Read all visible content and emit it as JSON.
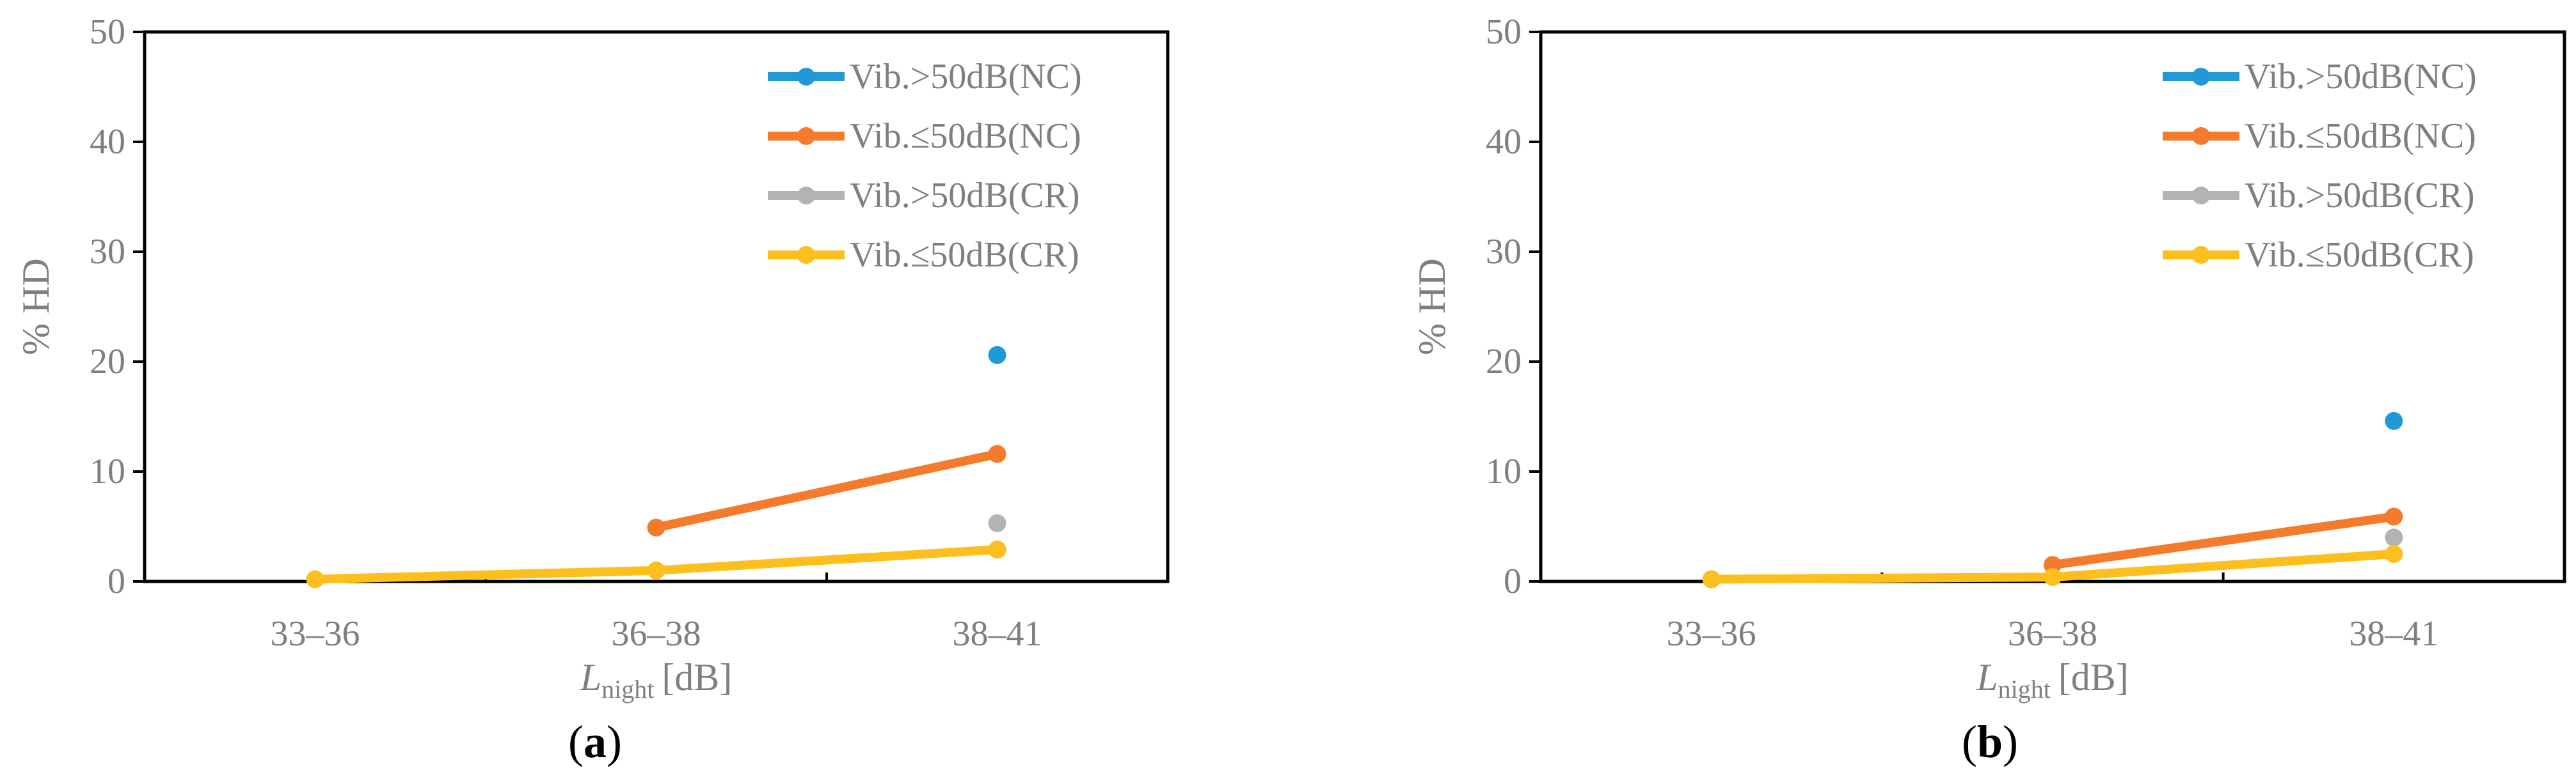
{
  "chart_data": [
    {
      "type": "line",
      "panel_label": "a",
      "categories": [
        "33–36",
        "36–38",
        "38–41"
      ],
      "xlabel": {
        "main": "L",
        "sub": "night",
        "unit": "[dB]"
      },
      "ylabel": "% HD",
      "ylim": [
        0,
        50
      ],
      "yticks": [
        0,
        10,
        20,
        30,
        40,
        50
      ],
      "grid": false,
      "legend_position": "top-right",
      "series": [
        {
          "name": "Vib.>50dB(NC)",
          "color": "#1f9ad6",
          "values": [
            null,
            null,
            20.6
          ]
        },
        {
          "name": "Vib.≤50dB(NC)",
          "color": "#f47b2b",
          "values": [
            null,
            4.9,
            11.6
          ]
        },
        {
          "name": "Vib.>50dB(CR)",
          "color": "#b3b3b3",
          "values": [
            null,
            null,
            5.3
          ]
        },
        {
          "name": "Vib.≤50dB(CR)",
          "color": "#fcbf1e",
          "values": [
            0.2,
            1.0,
            2.9
          ]
        }
      ]
    },
    {
      "type": "line",
      "panel_label": "b",
      "categories": [
        "33–36",
        "36–38",
        "38–41"
      ],
      "xlabel": {
        "main": "L",
        "sub": "night",
        "unit": "[dB]"
      },
      "ylabel": "% HD",
      "ylim": [
        0,
        50
      ],
      "yticks": [
        0,
        10,
        20,
        30,
        40,
        50
      ],
      "grid": false,
      "legend_position": "top-right",
      "series": [
        {
          "name": "Vib.>50dB(NC)",
          "color": "#1f9ad6",
          "values": [
            null,
            null,
            14.6
          ]
        },
        {
          "name": "Vib.≤50dB(NC)",
          "color": "#f47b2b",
          "values": [
            null,
            1.5,
            5.9
          ]
        },
        {
          "name": "Vib.>50dB(CR)",
          "color": "#b3b3b3",
          "values": [
            null,
            null,
            4.0
          ]
        },
        {
          "name": "Vib.≤50dB(CR)",
          "color": "#fcbf1e",
          "values": [
            0.2,
            0.4,
            2.5
          ]
        }
      ]
    }
  ]
}
